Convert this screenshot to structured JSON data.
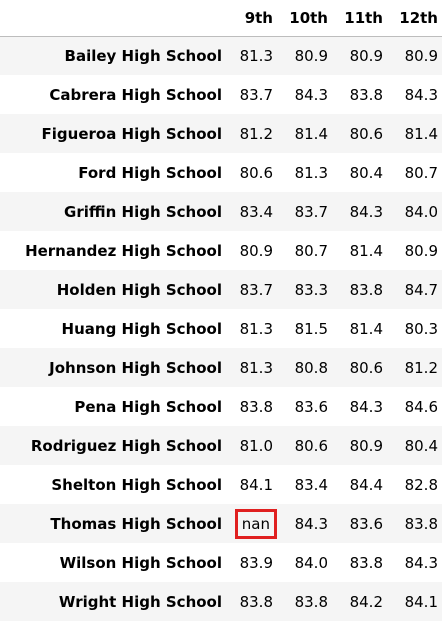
{
  "table": {
    "columns": [
      "9th",
      "10th",
      "11th",
      "12th"
    ],
    "rows": [
      {
        "school": "Bailey High School",
        "values": [
          "81.3",
          "80.9",
          "80.9",
          "80.9"
        ]
      },
      {
        "school": "Cabrera High School",
        "values": [
          "83.7",
          "84.3",
          "83.8",
          "84.3"
        ]
      },
      {
        "school": "Figueroa High School",
        "values": [
          "81.2",
          "81.4",
          "80.6",
          "81.4"
        ]
      },
      {
        "school": "Ford High School",
        "values": [
          "80.6",
          "81.3",
          "80.4",
          "80.7"
        ]
      },
      {
        "school": "Griffin High School",
        "values": [
          "83.4",
          "83.7",
          "84.3",
          "84.0"
        ]
      },
      {
        "school": "Hernandez High School",
        "values": [
          "80.9",
          "80.7",
          "81.4",
          "80.9"
        ]
      },
      {
        "school": "Holden High School",
        "values": [
          "83.7",
          "83.3",
          "83.8",
          "84.7"
        ]
      },
      {
        "school": "Huang High School",
        "values": [
          "81.3",
          "81.5",
          "81.4",
          "80.3"
        ]
      },
      {
        "school": "Johnson High School",
        "values": [
          "81.3",
          "80.8",
          "80.6",
          "81.2"
        ]
      },
      {
        "school": "Pena High School",
        "values": [
          "83.8",
          "83.6",
          "84.3",
          "84.6"
        ]
      },
      {
        "school": "Rodriguez High School",
        "values": [
          "81.0",
          "80.6",
          "80.9",
          "80.4"
        ]
      },
      {
        "school": "Shelton High School",
        "values": [
          "84.1",
          "83.4",
          "84.4",
          "82.8"
        ]
      },
      {
        "school": "Thomas High School",
        "values": [
          "nan",
          "84.3",
          "83.6",
          "83.8"
        ]
      },
      {
        "school": "Wilson High School",
        "values": [
          "83.9",
          "84.0",
          "83.8",
          "84.3"
        ]
      },
      {
        "school": "Wright High School",
        "values": [
          "83.8",
          "83.8",
          "84.2",
          "84.1"
        ]
      }
    ]
  },
  "highlight": {
    "row": 12,
    "col": 0,
    "border_color": "#e02020"
  },
  "colors": {
    "stripe": "#f5f5f5",
    "background": "#ffffff",
    "header_rule": "#bdbdbd"
  }
}
